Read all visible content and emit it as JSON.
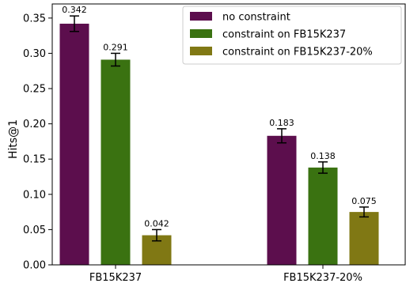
{
  "chart_data": {
    "type": "bar",
    "title": "",
    "xlabel": "",
    "ylabel": "Hits@1",
    "ylim": [
      0,
      0.37
    ],
    "yticks": [
      0.0,
      0.05,
      0.1,
      0.15,
      0.2,
      0.25,
      0.3,
      0.35
    ],
    "ytick_labels": [
      "0.00",
      "0.05",
      "0.10",
      "0.15",
      "0.20",
      "0.25",
      "0.30",
      "0.35"
    ],
    "categories": [
      "FB15K237",
      "FB15K237-20%"
    ],
    "grid": false,
    "legend_position": "top-right",
    "series": [
      {
        "name": "no constraint",
        "color": "#5c0e4d",
        "values": [
          0.342,
          0.183
        ],
        "errors": [
          0.011,
          0.01
        ],
        "labels": [
          "0.342",
          "0.183"
        ]
      },
      {
        "name": "constraint on FB15K237",
        "color": "#3a7211",
        "values": [
          0.291,
          0.138
        ],
        "errors": [
          0.009,
          0.008
        ],
        "labels": [
          "0.291",
          "0.138"
        ]
      },
      {
        "name": "constraint on FB15K237-20%",
        "color": "#807814",
        "values": [
          0.042,
          0.075
        ],
        "errors": [
          0.008,
          0.007
        ],
        "labels": [
          "0.042",
          "0.075"
        ]
      }
    ]
  }
}
